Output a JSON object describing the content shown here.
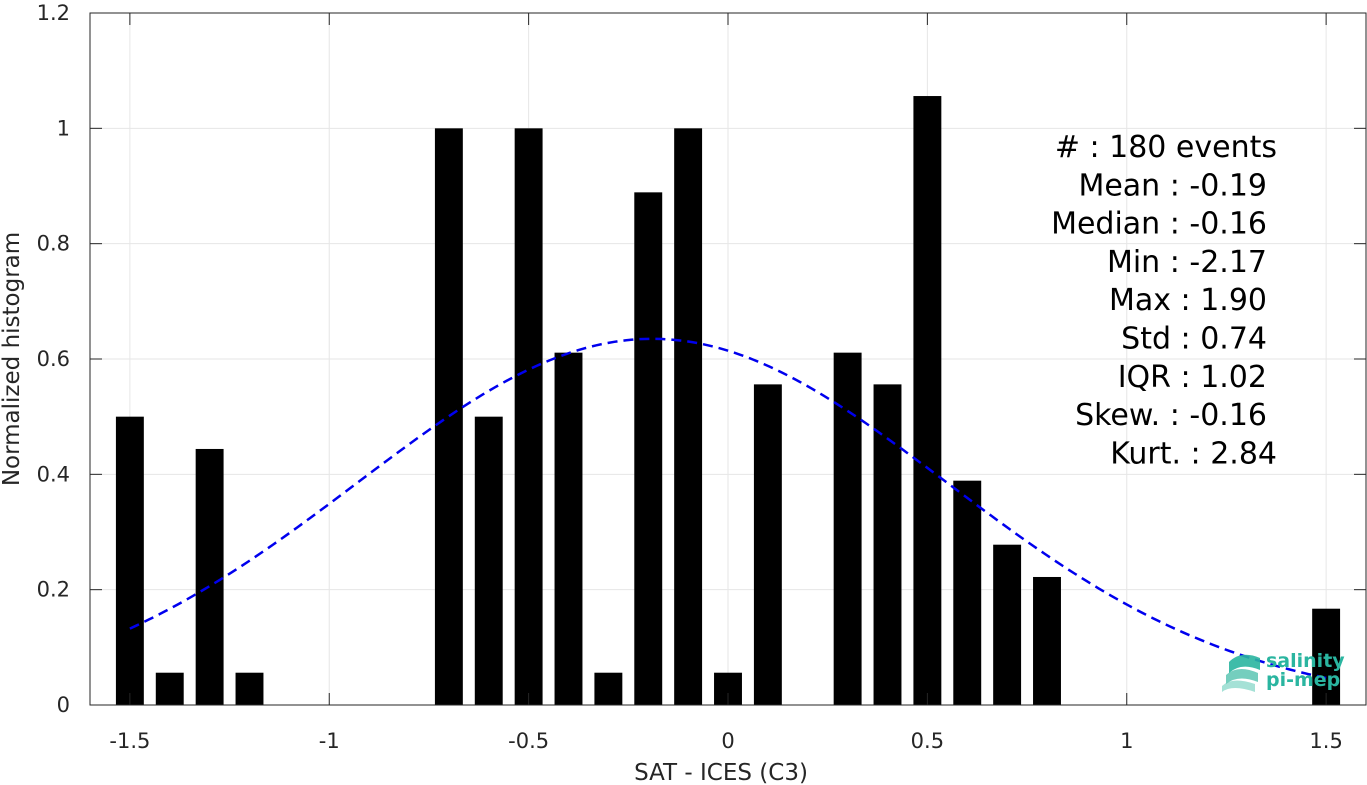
{
  "chart_data": {
    "type": "bar",
    "xlabel": "SAT - ICES (C3)",
    "ylabel": "Normalized histogram",
    "xlim": [
      -1.6,
      1.6
    ],
    "ylim": [
      0,
      1.2
    ],
    "grid": true,
    "x_ticks": [
      -1.5,
      -1,
      -0.5,
      0,
      0.5,
      1,
      1.5
    ],
    "x_tick_labels": [
      "-1.5",
      "-1",
      "-0.5",
      "0",
      "0.5",
      "1",
      "1.5"
    ],
    "y_ticks": [
      0,
      0.2,
      0.4,
      0.6,
      0.8,
      1,
      1.2
    ],
    "y_tick_labels": [
      "0",
      "0.2",
      "0.4",
      "0.6",
      "0.8",
      "1",
      "1.2"
    ],
    "bar_width": 0.07,
    "series": [
      {
        "type": "bar",
        "color": "#000000",
        "x": [
          -1.5,
          -1.4,
          -1.3,
          -1.2,
          -0.7,
          -0.6,
          -0.5,
          -0.4,
          -0.3,
          -0.2,
          -0.1,
          0.0,
          0.1,
          0.3,
          0.4,
          0.5,
          0.6,
          0.7,
          0.8,
          1.5
        ],
        "values": [
          0.5,
          0.056,
          0.444,
          0.056,
          1.0,
          0.5,
          1.0,
          0.611,
          0.056,
          0.889,
          1.0,
          0.056,
          0.556,
          0.611,
          0.556,
          1.056,
          0.389,
          0.278,
          0.222,
          0.167
        ]
      },
      {
        "type": "line",
        "style": "dashed",
        "color": "#0000ee",
        "fit": "normal",
        "mean": -0.19,
        "std": 0.74,
        "peak": 0.635,
        "x_range": [
          -1.5,
          1.5
        ]
      }
    ],
    "annotations": [
      {
        "line": "#  : 180 events",
        "anchor": "end",
        "offset": 0
      },
      {
        "line": "Mean : -0.19",
        "anchor": "end",
        "offset": -10
      },
      {
        "line": "Median : -0.16",
        "anchor": "end",
        "offset": -10
      },
      {
        "line": "Min : -2.17",
        "anchor": "end",
        "offset": -10
      },
      {
        "line": "Max : 1.90",
        "anchor": "end",
        "offset": -10
      },
      {
        "line": "Std : 0.74",
        "anchor": "end",
        "offset": -10
      },
      {
        "line": "IQR : 1.02",
        "anchor": "end",
        "offset": -10
      },
      {
        "line": "Skew. : -0.16",
        "anchor": "end",
        "offset": -10
      },
      {
        "line": "Kurt. : 2.84",
        "anchor": "end",
        "offset": 0
      }
    ]
  },
  "logo": {
    "line1": "salinity",
    "line2": "pi-mep",
    "color": "#2ab5a0"
  }
}
